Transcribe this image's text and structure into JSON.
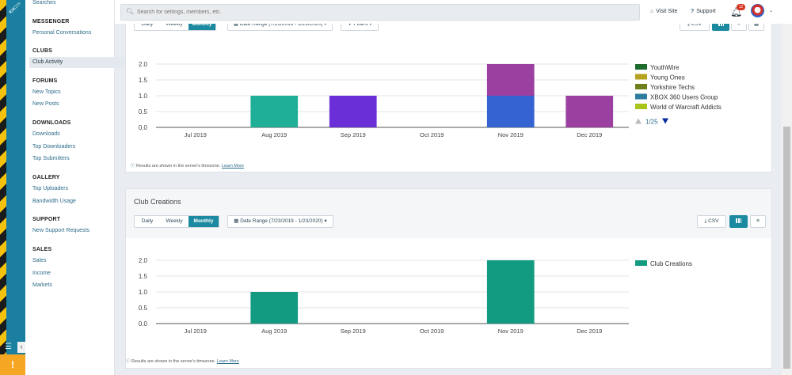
{
  "colors": {
    "accent": "#1b8aa0",
    "rail_bg": "#1a7fa0",
    "warning": "#f5a623",
    "notification": "#d9321f"
  },
  "sidebar": {
    "top_item": "Searches",
    "sections": [
      {
        "title": "MESSENGER",
        "items": [
          "Personal Conversations"
        ]
      },
      {
        "title": "CLUBS",
        "items": [
          "Club Activity"
        ]
      },
      {
        "title": "FORUMS",
        "items": [
          "New Topics",
          "New Posts"
        ]
      },
      {
        "title": "DOWNLOADS",
        "items": [
          "Downloads",
          "Top Downloaders",
          "Top Submitters"
        ]
      },
      {
        "title": "GALLERY",
        "items": [
          "Top Uploaders",
          "Bandwidth Usage"
        ]
      },
      {
        "title": "SUPPORT",
        "items": [
          "New Support Requests"
        ]
      },
      {
        "title": "SALES",
        "items": [
          "Sales",
          "Income",
          "Markets"
        ]
      }
    ],
    "active_item": "Club Activity"
  },
  "topbar": {
    "search_placeholder": "Search for settings, members, etc.",
    "visit_site": "Visit Site",
    "support": "Support",
    "notification_count": "12"
  },
  "panel1": {
    "range_buttons": [
      "Daily",
      "Weekly",
      "Monthly"
    ],
    "active_range": "Monthly",
    "date_range_label": "Date Range (7/23/2019 - 1/23/2020)",
    "filters_label": "Filters",
    "csv_label": "CSV",
    "timezone_note": "Results are shown in the server's timezone.",
    "learn_more": "Learn More",
    "legend_pager": "1/25"
  },
  "panel2": {
    "title": "Club Creations",
    "range_buttons": [
      "Daily",
      "Weekly",
      "Monthly"
    ],
    "active_range": "Monthly",
    "date_range_label": "Date Range (7/23/2019 - 1/23/2020)",
    "csv_label": "CSV",
    "timezone_note": "Results are shown in the server's timezone.",
    "learn_more": "Learn More"
  },
  "chart_data": [
    {
      "type": "bar",
      "stacked": true,
      "categories": [
        "Jul 2019",
        "Aug 2019",
        "Sep 2019",
        "Oct 2019",
        "Nov 2019",
        "Dec 2019"
      ],
      "ylim": [
        0,
        2
      ],
      "yticks": [
        "0.0",
        "0.5",
        "1.0",
        "1.5",
        "2.0"
      ],
      "legend": [
        {
          "name": "YouthWire",
          "color": "#1e6b2e"
        },
        {
          "name": "Young Ones",
          "color": "#b5a21e"
        },
        {
          "name": "Yorkshire Techs",
          "color": "#6f7f1b"
        },
        {
          "name": "XBOX 360 Users Group",
          "color": "#2e7d9e"
        },
        {
          "name": "World of Warcraft Addicts",
          "color": "#a9c41a"
        }
      ],
      "series": [
        {
          "color": "#1fae96",
          "values": [
            0,
            1,
            0,
            0,
            0,
            0
          ]
        },
        {
          "color": "#6a2fd6",
          "values": [
            0,
            0,
            1,
            0,
            0,
            0
          ]
        },
        {
          "color": "#3563d1",
          "values": [
            0,
            0,
            0,
            0,
            1,
            0
          ]
        },
        {
          "color": "#9b3fa1",
          "values": [
            0,
            0,
            0,
            0,
            1,
            1
          ]
        }
      ]
    },
    {
      "type": "bar",
      "categories": [
        "Jul 2019",
        "Aug 2019",
        "Sep 2019",
        "Oct 2019",
        "Nov 2019",
        "Dec 2019"
      ],
      "ylim": [
        0,
        2
      ],
      "yticks": [
        "0.0",
        "0.5",
        "1.0",
        "1.5",
        "2.0"
      ],
      "legend": [
        {
          "name": "Club Creations",
          "color": "#139b82"
        }
      ],
      "series": [
        {
          "name": "Club Creations",
          "color": "#139b82",
          "values": [
            0,
            1,
            0,
            0,
            2,
            0
          ]
        }
      ]
    }
  ]
}
